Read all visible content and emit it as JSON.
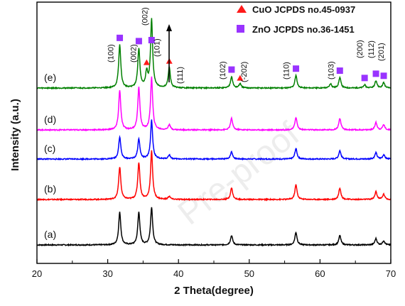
{
  "chart_data": {
    "type": "line",
    "title": "",
    "xlabel": "2 Theta(degree)",
    "ylabel": "Intensity (a.u.)",
    "xlim": [
      20,
      70
    ],
    "x_ticks": [
      20,
      30,
      40,
      50,
      60,
      70
    ],
    "y_ticks_shown": false,
    "grid": false,
    "legend_position": "top-right",
    "legend": [
      {
        "label": "CuO JCPDS no.45-0937",
        "marker": "triangle",
        "color": "#ff1a1a"
      },
      {
        "label": "ZnO JCPDS no.36-1451",
        "marker": "square",
        "color": "#9933ff"
      }
    ],
    "series": [
      {
        "name": "(a)",
        "color": "#000000",
        "peaks": [
          [
            31.7,
            0.62
          ],
          [
            34.4,
            0.62
          ],
          [
            36.2,
            0.72
          ],
          [
            47.5,
            0.18
          ],
          [
            56.6,
            0.24
          ],
          [
            62.8,
            0.18
          ],
          [
            67.9,
            0.12
          ],
          [
            69.0,
            0.08
          ]
        ]
      },
      {
        "name": "(b)",
        "color": "#ff0000",
        "peaks": [
          [
            31.7,
            0.62
          ],
          [
            34.4,
            0.7
          ],
          [
            36.2,
            0.92
          ],
          [
            38.7,
            0.06
          ],
          [
            47.5,
            0.22
          ],
          [
            56.6,
            0.28
          ],
          [
            62.8,
            0.22
          ],
          [
            67.9,
            0.15
          ],
          [
            69.0,
            0.1
          ]
        ]
      },
      {
        "name": "(c)",
        "color": "#0000ff",
        "peaks": [
          [
            31.7,
            0.42
          ],
          [
            34.4,
            0.38
          ],
          [
            36.2,
            0.74
          ],
          [
            38.7,
            0.08
          ],
          [
            47.5,
            0.14
          ],
          [
            56.6,
            0.2
          ],
          [
            62.8,
            0.16
          ],
          [
            67.9,
            0.12
          ],
          [
            69.0,
            0.08
          ]
        ]
      },
      {
        "name": "(d)",
        "color": "#ff00ff",
        "peaks": [
          [
            31.7,
            0.75
          ],
          [
            34.4,
            0.8
          ],
          [
            36.2,
            1.0
          ],
          [
            38.7,
            0.1
          ],
          [
            47.5,
            0.22
          ],
          [
            56.6,
            0.24
          ],
          [
            62.8,
            0.22
          ],
          [
            67.9,
            0.14
          ],
          [
            69.0,
            0.1
          ]
        ]
      },
      {
        "name": "(e)",
        "color": "#008000",
        "peaks": [
          [
            31.7,
            0.82
          ],
          [
            34.4,
            0.74
          ],
          [
            35.5,
            0.28
          ],
          [
            36.2,
            1.3
          ],
          [
            38.7,
            0.4
          ],
          [
            47.5,
            0.22
          ],
          [
            48.7,
            0.08
          ],
          [
            56.6,
            0.24
          ],
          [
            61.5,
            0.08
          ],
          [
            62.8,
            0.2
          ],
          [
            66.3,
            0.06
          ],
          [
            67.9,
            0.14
          ],
          [
            69.0,
            0.1
          ]
        ]
      }
    ],
    "annotations": {
      "hkl_labels": [
        {
          "text": "(100)",
          "x": 31.7
        },
        {
          "text": "(002)",
          "x": 34.4
        },
        {
          "text": "(002)",
          "x": 35.8
        },
        {
          "text": "(101)",
          "x": 37.1
        },
        {
          "text": "(111)",
          "x": 40.5
        },
        {
          "text": "(102)",
          "x": 47.5
        },
        {
          "text": "(-202)",
          "x": 49.3
        },
        {
          "text": "(110)",
          "x": 56.6
        },
        {
          "text": "(103)",
          "x": 62.8
        },
        {
          "text": "(200)",
          "x": 66.3
        },
        {
          "text": "(112)",
          "x": 67.9
        },
        {
          "text": "(201)",
          "x": 69.0
        }
      ],
      "zno_markers_x": [
        31.7,
        34.4,
        36.2,
        47.5,
        56.6,
        62.8,
        66.3,
        67.9,
        69.0
      ],
      "cuo_markers_x": [
        35.5,
        38.7,
        48.7
      ]
    },
    "watermark": "Pre-proof"
  }
}
